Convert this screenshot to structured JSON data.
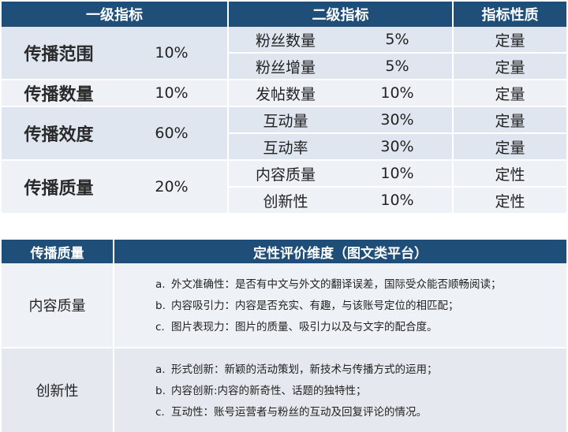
{
  "top_table": {
    "headers": {
      "level1": "一级指标",
      "level2": "二级指标",
      "nature": "指标性质"
    },
    "groups": [
      {
        "name": "传播范围",
        "weight": "10%",
        "subs": [
          {
            "name": "粉丝数量",
            "weight": "5%",
            "nature": "定量"
          },
          {
            "name": "粉丝增量",
            "weight": "5%",
            "nature": "定量"
          }
        ]
      },
      {
        "name": "传播数量",
        "weight": "10%",
        "subs": [
          {
            "name": "发帖数量",
            "weight": "10%",
            "nature": "定量"
          }
        ]
      },
      {
        "name": "传播效度",
        "weight": "60%",
        "subs": [
          {
            "name": "互动量",
            "weight": "30%",
            "nature": "定量"
          },
          {
            "name": "互动率",
            "weight": "30%",
            "nature": "定量"
          }
        ]
      },
      {
        "name": "传播质量",
        "weight": "20%",
        "subs": [
          {
            "name": "内容质量",
            "weight": "10%",
            "nature": "定性"
          },
          {
            "name": "创新性",
            "weight": "10%",
            "nature": "定性"
          }
        ]
      }
    ]
  },
  "bottom_table": {
    "headers": {
      "category": "传播质量",
      "dimension": "定性评价维度（图文类平台）"
    },
    "rows": [
      {
        "category": "内容质量",
        "items": [
          {
            "marker": "a.",
            "text": "外文准确性：是否有中文与外文的翻译误差，国际受众能否顺畅阅读；"
          },
          {
            "marker": "b.",
            "text": "内容吸引力：内容是否充实、有趣，与该账号定位的相匹配；"
          },
          {
            "marker": "c.",
            "text": "图片表现力：图片的质量、吸引力以及与文字的配合度。"
          }
        ]
      },
      {
        "category": "创新性",
        "items": [
          {
            "marker": "a.",
            "text": "形式创新：新颖的活动策划，新技术与传播方式的运用；"
          },
          {
            "marker": "b.",
            "text": "内容创新:内容的新奇性、话题的独特性；"
          },
          {
            "marker": "c.",
            "text": "互动性：账号运营者与粉丝的互动及回复评论的情况。"
          }
        ]
      }
    ]
  }
}
